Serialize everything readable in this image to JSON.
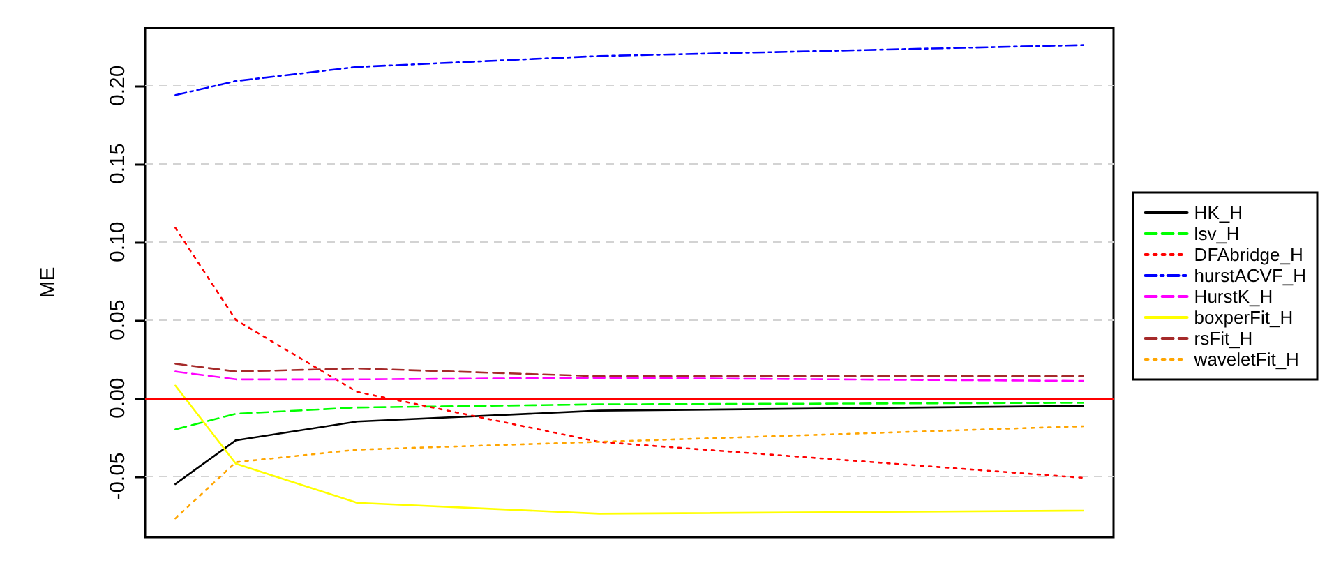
{
  "chart_data": {
    "type": "line",
    "ylabel": "ME",
    "categories": [
      null,
      null,
      null,
      null,
      null,
      null,
      null,
      null,
      null,
      null,
      null,
      null,
      null,
      null,
      null,
      null
    ],
    "ylim": [
      -0.089,
      0.237
    ],
    "yticks": [
      {
        "value": -0.05,
        "label": "-0.05"
      },
      {
        "value": 0,
        "label": "0.00"
      },
      {
        "value": 0.05,
        "label": "0.05"
      },
      {
        "value": 0.1,
        "label": "0.10"
      },
      {
        "value": 0.15,
        "label": "0.15"
      },
      {
        "value": 0.2,
        "label": "0.20"
      }
    ],
    "tick_labels": "y",
    "grid": "y",
    "legend": "right",
    "marker": "none",
    "ref_lines": [
      {
        "axis": "y",
        "value": 0,
        "label": null,
        "color": "#ff0000",
        "line_style": "solid"
      }
    ],
    "series": [
      {
        "name": "HK_H",
        "color": "#000000",
        "line_style": "solid",
        "values": [
          -0.055,
          -0.027,
          null,
          -0.015,
          null,
          null,
          null,
          -0.008,
          null,
          null,
          null,
          null,
          null,
          null,
          null,
          -0.005
        ]
      },
      {
        "name": "lsv_H",
        "color": "#00ff00",
        "line_style": "dashed",
        "values": [
          -0.02,
          -0.01,
          null,
          -0.006,
          null,
          null,
          null,
          -0.004,
          null,
          null,
          null,
          null,
          null,
          null,
          null,
          -0.003
        ]
      },
      {
        "name": "DFAbridge_H",
        "color": "#ff0000",
        "line_style": "dotted",
        "values": [
          0.109,
          0.05,
          null,
          0.004,
          null,
          null,
          null,
          -0.028,
          null,
          null,
          null,
          null,
          null,
          null,
          null,
          -0.051
        ]
      },
      {
        "name": "hurstACVF_H",
        "color": "#0000ff",
        "line_style": "dashdot",
        "values": [
          0.194,
          0.203,
          null,
          0.212,
          null,
          null,
          null,
          0.219,
          null,
          null,
          null,
          null,
          null,
          null,
          null,
          0.226
        ]
      },
      {
        "name": "HurstK_H",
        "color": "#ff00ff",
        "line_style": "dashed",
        "values": [
          0.017,
          0.012,
          null,
          0.012,
          null,
          null,
          null,
          0.013,
          null,
          null,
          null,
          null,
          null,
          null,
          null,
          0.011
        ]
      },
      {
        "name": "boxperFit_H",
        "color": "#ffff00",
        "line_style": "solid",
        "values": [
          0.008,
          -0.042,
          null,
          -0.067,
          null,
          null,
          null,
          -0.074,
          null,
          null,
          null,
          null,
          null,
          null,
          null,
          -0.072
        ]
      },
      {
        "name": "rsFit_H",
        "color": "#a52a2a",
        "line_style": "dashed",
        "values": [
          0.022,
          0.017,
          null,
          0.019,
          null,
          null,
          null,
          0.014,
          null,
          null,
          null,
          null,
          null,
          null,
          null,
          0.014
        ]
      },
      {
        "name": "waveletFit_H",
        "color": "#ffa500",
        "line_style": "dotted",
        "values": [
          -0.077,
          -0.041,
          null,
          -0.033,
          null,
          null,
          null,
          -0.028,
          null,
          null,
          null,
          null,
          null,
          null,
          null,
          -0.018
        ]
      }
    ]
  }
}
